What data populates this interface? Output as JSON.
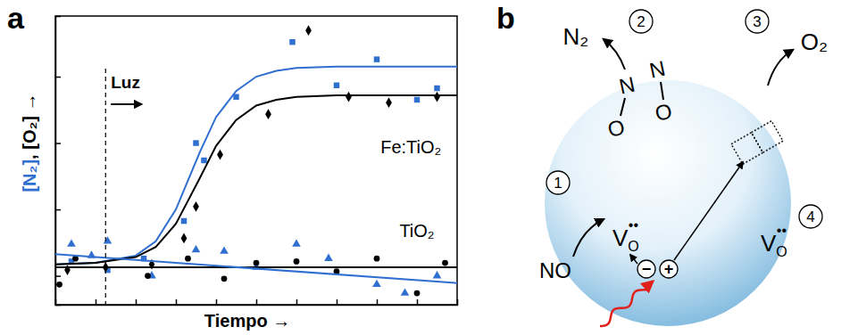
{
  "panel_labels": [
    "a",
    "b"
  ],
  "chart_data": {
    "type": "scatter",
    "xlabel": "Tiempo →",
    "ylabel": [
      {
        "text": "[N₂]",
        "color": "#2f6fd0"
      },
      {
        "text": ", [O₂] →",
        "color": "#000000"
      }
    ],
    "xlim": [
      0,
      10
    ],
    "ylim": [
      0,
      10
    ],
    "xticks": [
      1,
      2,
      3,
      4,
      5,
      6,
      7,
      8,
      9
    ],
    "yticks": [
      1,
      3.3,
      5.6,
      7.9
    ],
    "tick_labels": false,
    "grid": false,
    "annotations": [
      {
        "text": "Luz",
        "x": 1.25,
        "y": 7.5,
        "line_style": "dashed"
      },
      {
        "text": "Fe:TiO₂",
        "x": 8.85,
        "y": 5.4
      },
      {
        "text": "TiO₂",
        "x": 9.0,
        "y": 2.5
      }
    ],
    "series": [
      {
        "type": "scatter",
        "marker": "square",
        "color": "#2f6fd0",
        "x": [
          0.4,
          1.3,
          2.2,
          3.2,
          3.5,
          3.7,
          4.5,
          5.9,
          7.0,
          8.0,
          9.0,
          9.5
        ],
        "values": [
          1.5,
          1.2,
          1.6,
          2.9,
          5.6,
          5.0,
          7.2,
          9.1,
          7.6,
          8.5,
          7.1,
          7.5
        ]
      },
      {
        "type": "scatter",
        "marker": "diamond",
        "color": "#000000",
        "x": [
          0.3,
          1.25,
          2.4,
          3.2,
          3.5,
          4.1,
          5.3,
          6.3,
          7.3,
          8.3,
          9.5
        ],
        "values": [
          1.2,
          1.3,
          1.4,
          2.3,
          3.4,
          5.2,
          6.6,
          9.5,
          7.2,
          7.0,
          7.2
        ]
      },
      {
        "type": "scatter",
        "marker": "triangle",
        "color": "#2f6fd0",
        "x": [
          0.4,
          0.9,
          1.3,
          2.4,
          3.5,
          4.2,
          5.0,
          6.0,
          6.8,
          8.0,
          8.7,
          9.5
        ],
        "values": [
          2.1,
          1.7,
          2.2,
          1.0,
          1.9,
          1.85,
          1.3,
          2.1,
          1.6,
          0.7,
          0.4,
          1.0
        ]
      },
      {
        "type": "scatter",
        "marker": "circle",
        "color": "#000000",
        "x": [
          0.1,
          0.5,
          2.3,
          3.3,
          4.2,
          5.0,
          6.0,
          7.0,
          8.0,
          9.0,
          9.7
        ],
        "values": [
          0.7,
          1.6,
          1.0,
          1.6,
          0.9,
          1.45,
          1.5,
          1.15,
          1.6,
          0.4,
          1.45
        ]
      },
      {
        "type": "line",
        "line_style": "solid",
        "color": "#2f6fd0",
        "x": [
          0,
          1,
          2,
          2.5,
          3,
          3.3,
          3.6,
          4,
          4.5,
          5,
          5.5,
          6,
          7,
          8,
          9,
          10
        ],
        "values": [
          1.4,
          1.45,
          1.7,
          2.2,
          3.3,
          4.3,
          5.3,
          6.5,
          7.4,
          7.9,
          8.1,
          8.2,
          8.25,
          8.25,
          8.25,
          8.25
        ]
      },
      {
        "type": "line",
        "line_style": "solid",
        "color": "#000000",
        "x": [
          0,
          1,
          2,
          2.5,
          3,
          3.3,
          3.6,
          4,
          4.5,
          5,
          5.5,
          6,
          7,
          8,
          9,
          10
        ],
        "values": [
          1.4,
          1.45,
          1.65,
          2.0,
          2.8,
          3.6,
          4.4,
          5.5,
          6.4,
          6.9,
          7.1,
          7.2,
          7.25,
          7.25,
          7.25,
          7.25
        ]
      },
      {
        "type": "line",
        "line_style": "solid",
        "color": "#000000",
        "x": [
          0,
          10
        ],
        "values": [
          1.3,
          1.3
        ]
      },
      {
        "type": "line",
        "line_style": "solid",
        "color": "#2f6fd0",
        "x": [
          0,
          10
        ],
        "values": [
          1.75,
          0.75
        ]
      }
    ]
  },
  "diagram": {
    "steps": [
      "1",
      "2",
      "3",
      "4"
    ],
    "reactant": "NO",
    "products": [
      "N₂",
      "O₂"
    ],
    "intermediate": [
      "N",
      "O",
      "N",
      "O"
    ],
    "vacancies": [
      {
        "base": "V",
        "sub": "O",
        "sup": "••"
      },
      {
        "base": "V",
        "sub": "O",
        "sup": "••"
      }
    ],
    "charges": [
      "−",
      "+"
    ]
  }
}
